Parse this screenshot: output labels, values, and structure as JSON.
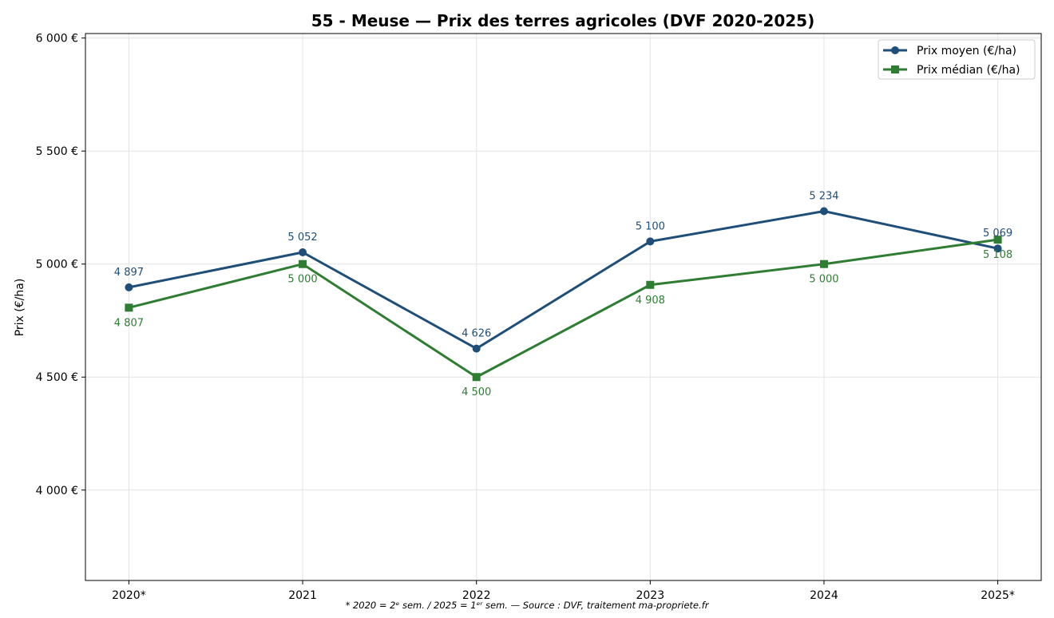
{
  "chart_data": {
    "type": "line",
    "title": "55 - Meuse — Prix des terres agricoles (DVF 2020-2025)",
    "xlabel": "",
    "ylabel": "Prix (€/ha)",
    "categories": [
      "2020*",
      "2021",
      "2022",
      "2023",
      "2024",
      "2025*"
    ],
    "ylim": [
      3600,
      6020
    ],
    "yticks": [
      4000,
      4500,
      5000,
      5500,
      6000
    ],
    "ytick_labels": [
      "4 000 €",
      "4 500 €",
      "5 000 €",
      "5 500 €",
      "6 000 €"
    ],
    "grid": true,
    "legend_position": "top-right",
    "series": [
      {
        "name": "Prix moyen (€/ha)",
        "color": "#1f4e79",
        "marker": "circle",
        "values": [
          4897,
          5052,
          4626,
          5100,
          5234,
          5069
        ],
        "labels": [
          "4 897",
          "5 052",
          "4 626",
          "5 100",
          "5 234",
          "5 069"
        ]
      },
      {
        "name": "Prix médian (€/ha)",
        "color": "#2e7d32",
        "marker": "square",
        "values": [
          4807,
          5000,
          4500,
          4908,
          5000,
          5108
        ],
        "labels": [
          "4 807",
          "5 000",
          "4 500",
          "4 908",
          "5 000",
          "5 108"
        ]
      }
    ],
    "footnote": "* 2020 = 2ᵉ sem. / 2025 = 1ᵉʳ sem. — Source : DVF, traitement ma-propriete.fr"
  }
}
